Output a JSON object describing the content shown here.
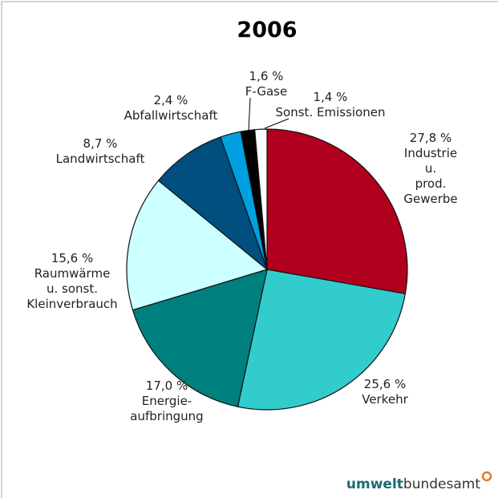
{
  "chart_data": {
    "type": "pie",
    "title": "2006",
    "categories": [
      "Industrie u.\nprod. Gewerbe",
      "Verkehr",
      "Energie-\naufbringung",
      "Raumwärme\nu. sonst.\nKleinverbrauch",
      "Landwirtschaft",
      "Abfallwirtschaft",
      "F-Gase",
      "Sonst. Emissionen"
    ],
    "values": [
      27.8,
      25.6,
      17.0,
      15.6,
      8.7,
      2.4,
      1.6,
      1.4
    ],
    "value_labels": [
      "27,8 %",
      "25,6 %",
      "17,0 %",
      "15,6 %",
      "8,7 %",
      "2,4 %",
      "1,6 %",
      "1,4 %"
    ],
    "colors": [
      "#b0001e",
      "#33cccc",
      "#007f7f",
      "#ccffff",
      "#004f7f",
      "#00a0e0",
      "#000000",
      "#ffffff"
    ]
  },
  "logo": {
    "bold": "umwelt",
    "rest": "bundesamt"
  }
}
